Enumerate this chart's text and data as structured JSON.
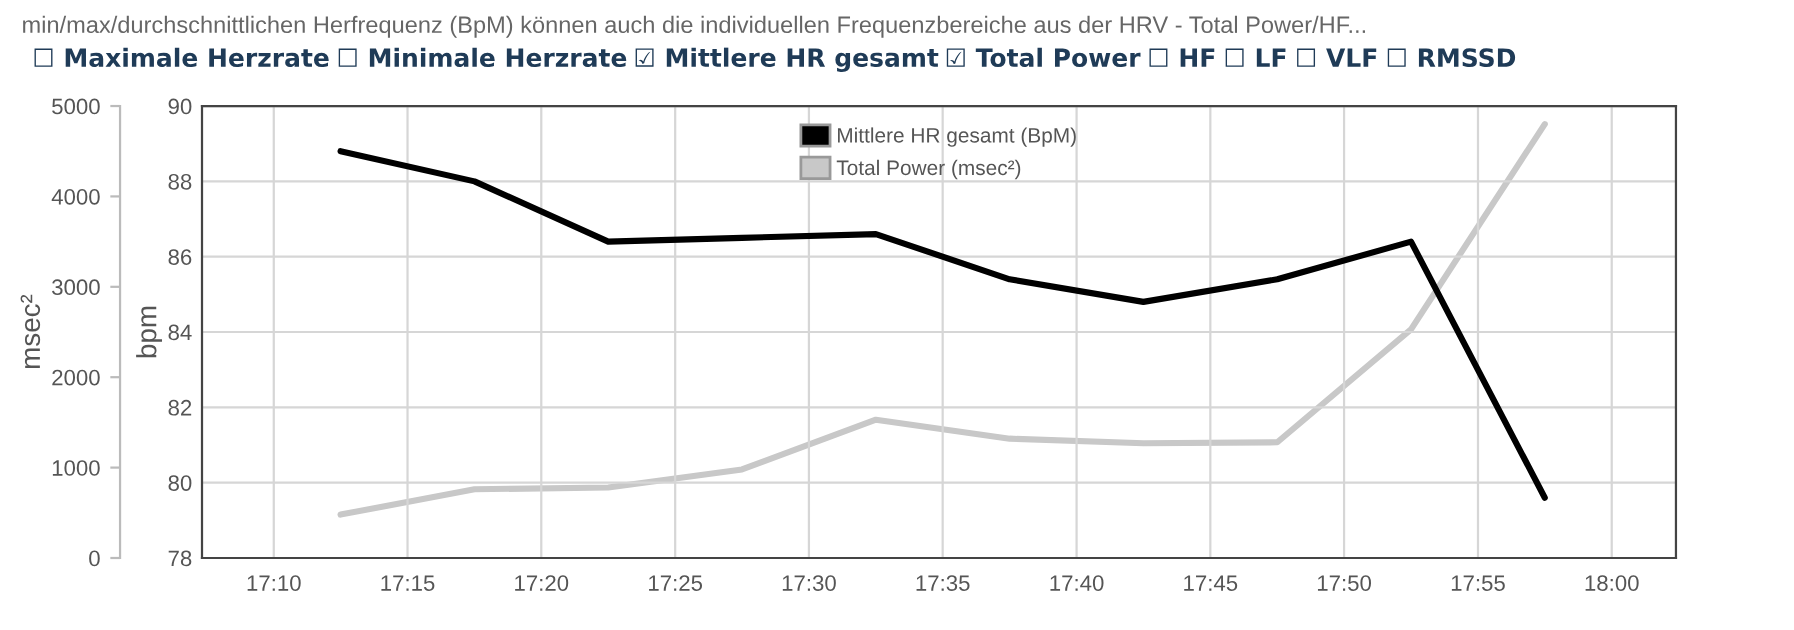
{
  "chart_data": {
    "type": "line",
    "ylabel": "bpm",
    "y2label": "msec²",
    "annotations": [
      "min/max/durchschnittlichen Herfrequenz (BpM) können auch die individuellen Frequenzbereiche aus der HRV - Total Power/HF...",
      "☐ Maximale Herzrate",
      "☐ Minimale Herzrate",
      "☑ Mittlere HR gesamt",
      "☑ Total Power",
      "☐ HF",
      "☐ LF",
      "☐ VLF",
      "☐ RMSSD"
    ],
    "x": [
      17.2083,
      17.2917,
      17.375,
      17.4583,
      17.5417,
      17.625,
      17.7083,
      17.7917,
      17.875,
      17.9583
    ],
    "series": [
      {
        "name": "Mittlere HR gesamt (BpM)",
        "color": "#000000",
        "values": [
          88.8,
          88.0,
          86.4,
          86.5,
          86.6,
          85.4,
          84.8,
          85.4,
          86.4,
          79.6
        ]
      },
      {
        "name": "Total Power (msec²)",
        "color": "#c8c8c8",
        "axis": "y2",
        "values": [
          480,
          760,
          780,
          980,
          1530,
          1320,
          1270,
          1280,
          2530,
          4800
        ]
      }
    ],
    "xlim": [
      17.122,
      18.04
    ],
    "xticks": [
      {
        "value": 17.1667,
        "label": "17:10"
      },
      {
        "value": 17.25,
        "label": "17:15"
      },
      {
        "value": 17.3333,
        "label": "17:20"
      },
      {
        "value": 17.4167,
        "label": "17:25"
      },
      {
        "value": 17.5,
        "label": "17:30"
      },
      {
        "value": 17.5833,
        "label": "17:35"
      },
      {
        "value": 17.6667,
        "label": "17:40"
      },
      {
        "value": 17.75,
        "label": "17:45"
      },
      {
        "value": 17.8333,
        "label": "17:50"
      },
      {
        "value": 17.9167,
        "label": "17:55"
      },
      {
        "value": 18.0,
        "label": "18:00"
      }
    ],
    "ylim": [
      78,
      90
    ],
    "yticks": [
      78,
      80,
      82,
      84,
      86,
      88,
      90
    ],
    "y2lim": [
      0,
      5000
    ],
    "y2ticks": [
      0,
      1000,
      2000,
      3000,
      4000,
      5000
    ],
    "grid": true,
    "legend": "top",
    "marker": "none",
    "line_style": "solid"
  }
}
